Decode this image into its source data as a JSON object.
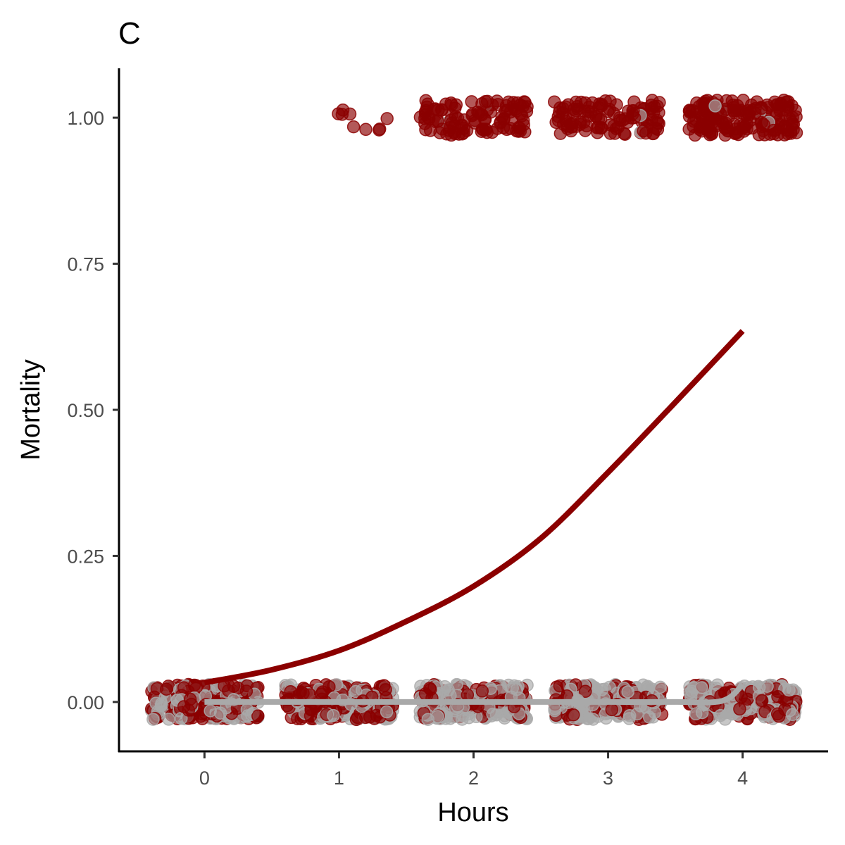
{
  "chart_data": {
    "type": "scatter",
    "title": "C",
    "xlabel": "Hours",
    "ylabel": "Mortality",
    "xlim": [
      -0.63,
      4.63
    ],
    "ylim": [
      -0.0845,
      1.0845
    ],
    "x_ticks": [
      {
        "value": 0,
        "label": "0"
      },
      {
        "value": 1,
        "label": "1"
      },
      {
        "value": 2,
        "label": "2"
      },
      {
        "value": 3,
        "label": "3"
      },
      {
        "value": 4,
        "label": "4"
      }
    ],
    "y_ticks": [
      {
        "value": 0,
        "label": "0.00"
      },
      {
        "value": 0.25,
        "label": "0.25"
      },
      {
        "value": 0.5,
        "label": "0.50"
      },
      {
        "value": 0.75,
        "label": "0.75"
      },
      {
        "value": 1,
        "label": "1.00"
      }
    ],
    "grid": false,
    "legend": "none",
    "series": [
      {
        "color": "#8b0000",
        "fit_line": {
          "x": [
            0,
            0.5,
            1,
            1.5,
            2,
            2.5,
            3,
            3.5,
            4
          ],
          "y": [
            0.033,
            0.055,
            0.088,
            0.138,
            0.198,
            0.28,
            0.393,
            0.513,
            0.635
          ]
        },
        "points": {
          "jitter_x": 0.4,
          "jitter_y": 0.03,
          "groups": [
            {
              "x": 0,
              "y": 0,
              "n": 170
            },
            {
              "x": 1,
              "y": 0,
              "n": 150
            },
            {
              "x": 2,
              "y": 0,
              "n": 110
            },
            {
              "x": 3,
              "y": 0,
              "n": 110
            },
            {
              "x": 4,
              "y": 0,
              "n": 110
            },
            {
              "x": 1,
              "y": 1,
              "n": 9,
              "x_min": -0.03,
              "x_max": 0.38
            },
            {
              "x": 2,
              "y": 1,
              "n": 110
            },
            {
              "x": 3,
              "y": 1,
              "n": 110
            },
            {
              "x": 4,
              "y": 1,
              "n": 170
            }
          ]
        }
      },
      {
        "color": "#a9a9a9",
        "fit_line": {
          "x": [
            0,
            0.5,
            1,
            1.5,
            2,
            2.5,
            3,
            3.5,
            3.85,
            4
          ],
          "y": [
            0,
            0,
            0,
            0,
            0,
            0,
            0,
            0,
            0.002,
            0.03
          ]
        },
        "points": {
          "jitter_x": 0.4,
          "jitter_y": 0.03,
          "groups": [
            {
              "x": 0,
              "y": 0,
              "n": 140
            },
            {
              "x": 1,
              "y": 0,
              "n": 110
            },
            {
              "x": 2,
              "y": 0,
              "n": 140
            },
            {
              "x": 3,
              "y": 0,
              "n": 150
            },
            {
              "x": 4,
              "y": 0,
              "n": 150
            },
            {
              "x": 2,
              "y": 1,
              "n": 2
            },
            {
              "x": 3,
              "y": 1,
              "n": 2
            },
            {
              "x": 4,
              "y": 1,
              "n": 4
            }
          ]
        }
      }
    ]
  }
}
